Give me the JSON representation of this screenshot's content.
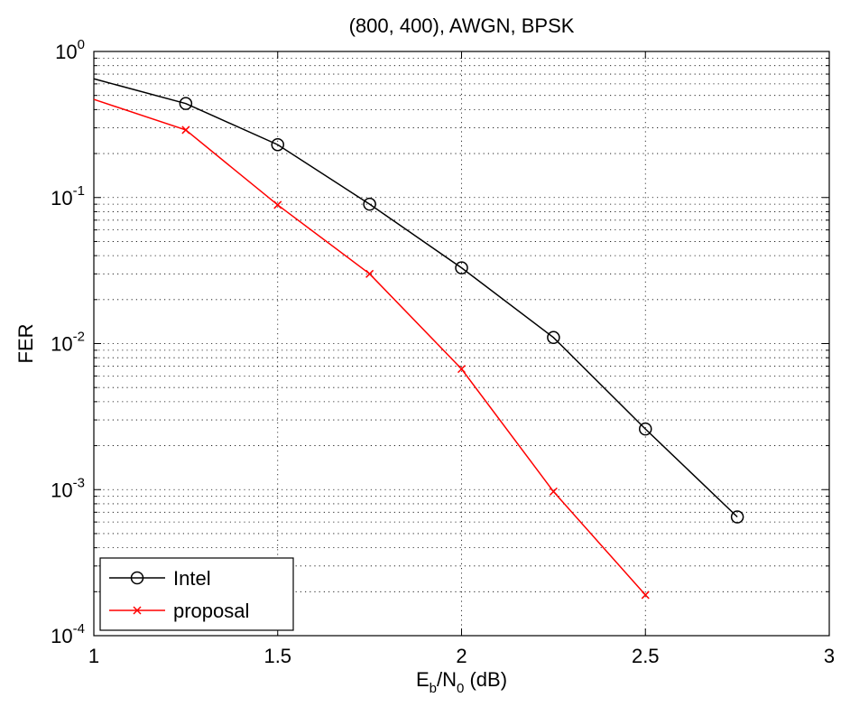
{
  "chart_data": {
    "type": "line",
    "title": "(800, 400), AWGN, BPSK",
    "xlabel": {
      "main": "E",
      "sub_b": "b",
      "slash": "/N",
      "sub_0": "0",
      "unit": " (dB)"
    },
    "ylabel": "FER",
    "xlim": [
      1,
      3
    ],
    "ylim": [
      0.0001,
      1
    ],
    "yscale": "log",
    "grid": true,
    "legend_position": "bottom-left",
    "x_ticks": [
      "1",
      "1.5",
      "2",
      "2.5",
      "3"
    ],
    "y_ticks": [
      {
        "value": 0.0001,
        "base": "10",
        "exp": "-4"
      },
      {
        "value": 0.001,
        "base": "10",
        "exp": "-3"
      },
      {
        "value": 0.01,
        "base": "10",
        "exp": "-2"
      },
      {
        "value": 0.1,
        "base": "10",
        "exp": "-1"
      },
      {
        "value": 1,
        "base": "10",
        "exp": "0"
      }
    ],
    "series": [
      {
        "name": "Intel",
        "color": "#000000",
        "marker": "circle",
        "x": [
          1,
          1.25,
          1.5,
          1.75,
          2,
          2.25,
          2.5,
          2.75
        ],
        "y": [
          0.65,
          0.44,
          0.23,
          0.09,
          0.033,
          0.011,
          0.0026,
          0.00065
        ]
      },
      {
        "name": "proposal",
        "color": "#ff0000",
        "marker": "x",
        "x": [
          1,
          1.25,
          1.5,
          1.75,
          2,
          2.25,
          2.5
        ],
        "y": [
          0.47,
          0.29,
          0.089,
          0.03,
          0.0067,
          0.00097,
          0.00019
        ]
      }
    ]
  }
}
